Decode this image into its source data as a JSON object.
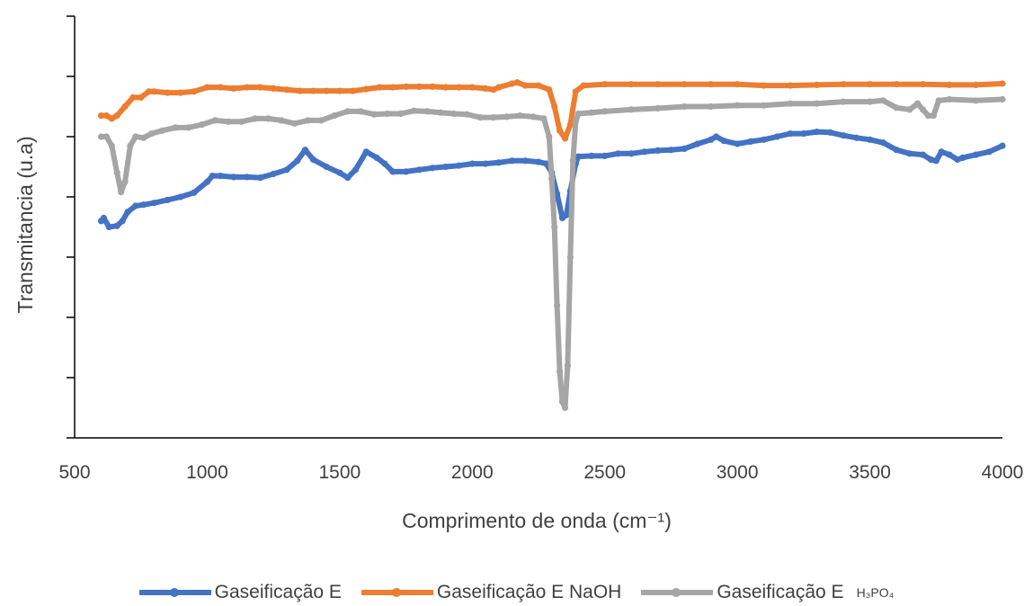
{
  "chart_data": {
    "type": "line",
    "title": "",
    "xlabel": "Comprimento de onda (cm⁻¹)",
    "ylabel": "Transmitancia (u.a)",
    "xlim": [
      500,
      4000
    ],
    "ylim": [
      0,
      7
    ],
    "x_ticks": [
      500,
      1000,
      1500,
      2000,
      2500,
      3000,
      3500,
      4000
    ],
    "y_tick_values": [
      0,
      1,
      2,
      3,
      4,
      5,
      6,
      7
    ],
    "y_tick_labels_shown": false,
    "grid": false,
    "legend_position": "bottom",
    "series": [
      {
        "name": "Gaseificação E",
        "legend_suffix": "",
        "color": "#4472C4",
        "points": [
          [
            600,
            3.6
          ],
          [
            610,
            3.65
          ],
          [
            630,
            3.5
          ],
          [
            660,
            3.52
          ],
          [
            680,
            3.6
          ],
          [
            700,
            3.75
          ],
          [
            730,
            3.85
          ],
          [
            760,
            3.87
          ],
          [
            800,
            3.9
          ],
          [
            850,
            3.95
          ],
          [
            900,
            4.0
          ],
          [
            950,
            4.07
          ],
          [
            1000,
            4.25
          ],
          [
            1020,
            4.35
          ],
          [
            1050,
            4.35
          ],
          [
            1100,
            4.33
          ],
          [
            1150,
            4.33
          ],
          [
            1200,
            4.32
          ],
          [
            1250,
            4.38
          ],
          [
            1300,
            4.45
          ],
          [
            1340,
            4.6
          ],
          [
            1370,
            4.78
          ],
          [
            1400,
            4.62
          ],
          [
            1450,
            4.5
          ],
          [
            1500,
            4.4
          ],
          [
            1530,
            4.32
          ],
          [
            1560,
            4.45
          ],
          [
            1600,
            4.75
          ],
          [
            1640,
            4.65
          ],
          [
            1670,
            4.55
          ],
          [
            1700,
            4.42
          ],
          [
            1750,
            4.42
          ],
          [
            1800,
            4.45
          ],
          [
            1850,
            4.48
          ],
          [
            1900,
            4.5
          ],
          [
            1950,
            4.52
          ],
          [
            2000,
            4.55
          ],
          [
            2050,
            4.55
          ],
          [
            2100,
            4.57
          ],
          [
            2150,
            4.6
          ],
          [
            2200,
            4.6
          ],
          [
            2250,
            4.58
          ],
          [
            2280,
            4.55
          ],
          [
            2300,
            4.4
          ],
          [
            2320,
            4.05
          ],
          [
            2340,
            3.65
          ],
          [
            2355,
            3.7
          ],
          [
            2370,
            4.1
          ],
          [
            2390,
            4.55
          ],
          [
            2400,
            4.67
          ],
          [
            2450,
            4.68
          ],
          [
            2500,
            4.68
          ],
          [
            2550,
            4.72
          ],
          [
            2600,
            4.72
          ],
          [
            2650,
            4.75
          ],
          [
            2700,
            4.77
          ],
          [
            2750,
            4.78
          ],
          [
            2800,
            4.8
          ],
          [
            2850,
            4.88
          ],
          [
            2900,
            4.95
          ],
          [
            2920,
            5.0
          ],
          [
            2950,
            4.93
          ],
          [
            3000,
            4.88
          ],
          [
            3050,
            4.92
          ],
          [
            3100,
            4.95
          ],
          [
            3150,
            5.0
          ],
          [
            3200,
            5.05
          ],
          [
            3250,
            5.05
          ],
          [
            3300,
            5.08
          ],
          [
            3350,
            5.07
          ],
          [
            3400,
            5.02
          ],
          [
            3450,
            4.98
          ],
          [
            3500,
            4.95
          ],
          [
            3550,
            4.9
          ],
          [
            3600,
            4.78
          ],
          [
            3650,
            4.72
          ],
          [
            3700,
            4.7
          ],
          [
            3730,
            4.62
          ],
          [
            3750,
            4.6
          ],
          [
            3770,
            4.75
          ],
          [
            3800,
            4.7
          ],
          [
            3830,
            4.62
          ],
          [
            3850,
            4.65
          ],
          [
            3900,
            4.7
          ],
          [
            3950,
            4.75
          ],
          [
            4000,
            4.85
          ]
        ]
      },
      {
        "name": "Gaseificação E NaOH",
        "legend_suffix": "",
        "color": "#ED7D31",
        "points": [
          [
            600,
            5.35
          ],
          [
            620,
            5.35
          ],
          [
            640,
            5.3
          ],
          [
            660,
            5.35
          ],
          [
            690,
            5.5
          ],
          [
            720,
            5.65
          ],
          [
            750,
            5.65
          ],
          [
            780,
            5.75
          ],
          [
            800,
            5.75
          ],
          [
            850,
            5.73
          ],
          [
            900,
            5.73
          ],
          [
            950,
            5.75
          ],
          [
            1000,
            5.82
          ],
          [
            1050,
            5.82
          ],
          [
            1100,
            5.8
          ],
          [
            1150,
            5.82
          ],
          [
            1200,
            5.82
          ],
          [
            1250,
            5.8
          ],
          [
            1300,
            5.78
          ],
          [
            1350,
            5.76
          ],
          [
            1400,
            5.76
          ],
          [
            1450,
            5.76
          ],
          [
            1500,
            5.76
          ],
          [
            1550,
            5.76
          ],
          [
            1600,
            5.79
          ],
          [
            1650,
            5.82
          ],
          [
            1700,
            5.82
          ],
          [
            1750,
            5.83
          ],
          [
            1800,
            5.83
          ],
          [
            1850,
            5.83
          ],
          [
            1900,
            5.82
          ],
          [
            1950,
            5.82
          ],
          [
            2000,
            5.82
          ],
          [
            2050,
            5.8
          ],
          [
            2080,
            5.78
          ],
          [
            2100,
            5.82
          ],
          [
            2150,
            5.88
          ],
          [
            2170,
            5.9
          ],
          [
            2200,
            5.85
          ],
          [
            2250,
            5.85
          ],
          [
            2290,
            5.78
          ],
          [
            2310,
            5.5
          ],
          [
            2330,
            5.1
          ],
          [
            2350,
            4.97
          ],
          [
            2370,
            5.2
          ],
          [
            2390,
            5.75
          ],
          [
            2420,
            5.85
          ],
          [
            2500,
            5.87
          ],
          [
            2600,
            5.87
          ],
          [
            2700,
            5.87
          ],
          [
            2800,
            5.87
          ],
          [
            2900,
            5.87
          ],
          [
            3000,
            5.87
          ],
          [
            3100,
            5.85
          ],
          [
            3200,
            5.85
          ],
          [
            3300,
            5.86
          ],
          [
            3400,
            5.87
          ],
          [
            3500,
            5.87
          ],
          [
            3600,
            5.87
          ],
          [
            3700,
            5.87
          ],
          [
            3800,
            5.86
          ],
          [
            3900,
            5.86
          ],
          [
            4000,
            5.88
          ]
        ]
      },
      {
        "name": "Gaseificação E",
        "legend_suffix": "H₃PO₄",
        "color": "#A5A5A5",
        "points": [
          [
            600,
            5.0
          ],
          [
            620,
            5.0
          ],
          [
            640,
            4.85
          ],
          [
            660,
            4.4
          ],
          [
            675,
            4.08
          ],
          [
            690,
            4.25
          ],
          [
            710,
            4.85
          ],
          [
            730,
            5.0
          ],
          [
            760,
            4.98
          ],
          [
            790,
            5.05
          ],
          [
            830,
            5.1
          ],
          [
            880,
            5.15
          ],
          [
            930,
            5.15
          ],
          [
            980,
            5.2
          ],
          [
            1030,
            5.27
          ],
          [
            1080,
            5.25
          ],
          [
            1130,
            5.25
          ],
          [
            1180,
            5.3
          ],
          [
            1230,
            5.3
          ],
          [
            1280,
            5.27
          ],
          [
            1330,
            5.22
          ],
          [
            1380,
            5.27
          ],
          [
            1430,
            5.27
          ],
          [
            1480,
            5.35
          ],
          [
            1530,
            5.42
          ],
          [
            1580,
            5.42
          ],
          [
            1630,
            5.37
          ],
          [
            1680,
            5.38
          ],
          [
            1730,
            5.38
          ],
          [
            1780,
            5.43
          ],
          [
            1830,
            5.42
          ],
          [
            1880,
            5.4
          ],
          [
            1930,
            5.38
          ],
          [
            1980,
            5.37
          ],
          [
            2030,
            5.32
          ],
          [
            2080,
            5.32
          ],
          [
            2130,
            5.33
          ],
          [
            2180,
            5.35
          ],
          [
            2230,
            5.33
          ],
          [
            2270,
            5.3
          ],
          [
            2290,
            5.0
          ],
          [
            2300,
            4.3
          ],
          [
            2310,
            3.5
          ],
          [
            2320,
            2.2
          ],
          [
            2330,
            1.1
          ],
          [
            2340,
            0.6
          ],
          [
            2350,
            0.5
          ],
          [
            2360,
            1.2
          ],
          [
            2370,
            3.0
          ],
          [
            2380,
            4.6
          ],
          [
            2390,
            5.25
          ],
          [
            2400,
            5.38
          ],
          [
            2450,
            5.4
          ],
          [
            2500,
            5.42
          ],
          [
            2600,
            5.45
          ],
          [
            2700,
            5.47
          ],
          [
            2800,
            5.5
          ],
          [
            2900,
            5.5
          ],
          [
            3000,
            5.52
          ],
          [
            3100,
            5.52
          ],
          [
            3200,
            5.55
          ],
          [
            3300,
            5.55
          ],
          [
            3400,
            5.58
          ],
          [
            3500,
            5.58
          ],
          [
            3550,
            5.6
          ],
          [
            3600,
            5.48
          ],
          [
            3650,
            5.45
          ],
          [
            3680,
            5.55
          ],
          [
            3700,
            5.45
          ],
          [
            3720,
            5.35
          ],
          [
            3740,
            5.35
          ],
          [
            3760,
            5.6
          ],
          [
            3800,
            5.62
          ],
          [
            3900,
            5.6
          ],
          [
            4000,
            5.62
          ]
        ]
      }
    ]
  }
}
